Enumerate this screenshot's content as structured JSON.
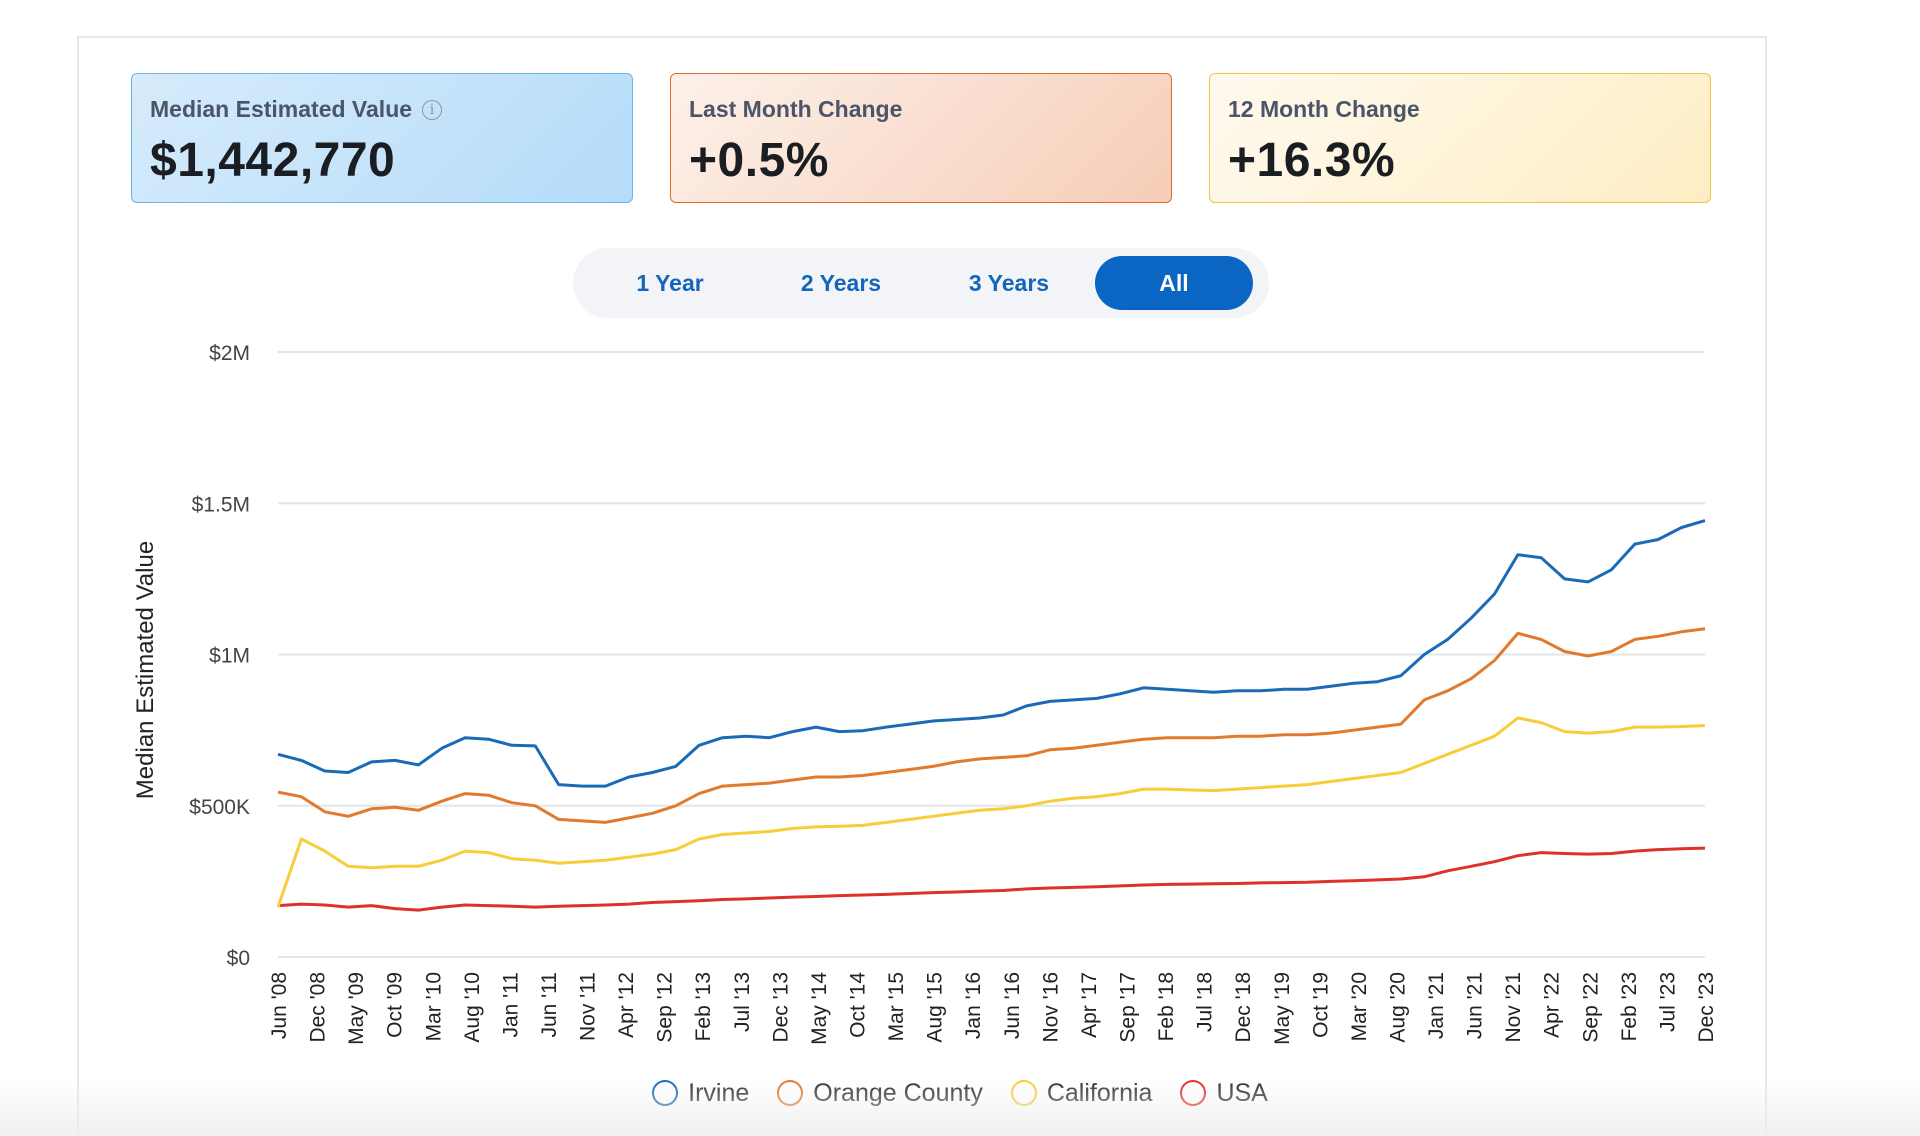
{
  "stats": [
    {
      "label": "Median Estimated Value",
      "value": "$1,442,770",
      "info_icon": "info-icon"
    },
    {
      "label": "Last Month Change",
      "value": "+0.5%"
    },
    {
      "label": "12 Month Change",
      "value": "+16.3%"
    }
  ],
  "range_tabs": [
    "1 Year",
    "2 Years",
    "3 Years",
    "All"
  ],
  "active_tab": "All",
  "colors": {
    "irvine": "#1b6ab8",
    "orange_county": "#e27a2e",
    "california": "#f7cd3a",
    "usa": "#e0302c",
    "active_tab": "#0b66c3"
  },
  "chart_data": {
    "type": "line",
    "title": "",
    "xlabel": "",
    "ylabel": "Median Estimated Value",
    "ylim": [
      0,
      2000000
    ],
    "y_ticks": [
      {
        "value": 0,
        "label": "$0"
      },
      {
        "value": 500000,
        "label": "$500K"
      },
      {
        "value": 1000000,
        "label": "$1M"
      },
      {
        "value": 1500000,
        "label": "$1.5M"
      },
      {
        "value": 2000000,
        "label": "$2M"
      }
    ],
    "x_tick_labels": [
      "Jun '08",
      "Dec '08",
      "May '09",
      "Oct '09",
      "Mar '10",
      "Aug '10",
      "Jan '11",
      "Jun '11",
      "Nov '11",
      "Apr '12",
      "Sep '12",
      "Feb '13",
      "Jul '13",
      "Dec '13",
      "May '14",
      "Oct '14",
      "Mar '15",
      "Aug '15",
      "Jan '16",
      "Jun '16",
      "Nov '16",
      "Apr '17",
      "Sep '17",
      "Feb '18",
      "Jul '18",
      "Dec '18",
      "May '19",
      "Oct '19",
      "Mar '20",
      "Aug '20",
      "Jan '21",
      "Jun '21",
      "Nov '21",
      "Apr '22",
      "Sep '22",
      "Feb '23",
      "Jul '23",
      "Dec '23"
    ],
    "grid": true,
    "legend_position": "bottom-center",
    "series": [
      {
        "name": "Irvine",
        "values": [
          670000,
          650000,
          615000,
          610000,
          645000,
          650000,
          635000,
          690000,
          725000,
          720000,
          700000,
          698000,
          570000,
          565000,
          565000,
          595000,
          610000,
          630000,
          700000,
          725000,
          730000,
          725000,
          745000,
          760000,
          745000,
          748000,
          760000,
          770000,
          780000,
          785000,
          790000,
          800000,
          830000,
          845000,
          850000,
          855000,
          870000,
          890000,
          885000,
          880000,
          875000,
          880000,
          880000,
          885000,
          885000,
          895000,
          905000,
          910000,
          930000,
          1000000,
          1050000,
          1120000,
          1200000,
          1330000,
          1320000,
          1250000,
          1240000,
          1280000,
          1365000,
          1380000,
          1420000,
          1442770
        ]
      },
      {
        "name": "Orange County",
        "values": [
          545000,
          530000,
          480000,
          465000,
          490000,
          495000,
          485000,
          515000,
          540000,
          535000,
          510000,
          500000,
          455000,
          450000,
          445000,
          460000,
          475000,
          500000,
          540000,
          565000,
          570000,
          575000,
          585000,
          595000,
          595000,
          600000,
          610000,
          620000,
          630000,
          645000,
          655000,
          660000,
          665000,
          685000,
          690000,
          700000,
          710000,
          720000,
          725000,
          725000,
          725000,
          730000,
          730000,
          735000,
          735000,
          740000,
          750000,
          760000,
          770000,
          850000,
          880000,
          920000,
          980000,
          1070000,
          1050000,
          1010000,
          995000,
          1010000,
          1050000,
          1060000,
          1075000,
          1085000
        ]
      },
      {
        "name": "California",
        "values": [
          165000,
          390000,
          350000,
          300000,
          295000,
          300000,
          300000,
          320000,
          350000,
          345000,
          325000,
          320000,
          310000,
          315000,
          320000,
          330000,
          340000,
          355000,
          390000,
          405000,
          410000,
          415000,
          425000,
          430000,
          432000,
          435000,
          445000,
          455000,
          465000,
          475000,
          485000,
          490000,
          500000,
          515000,
          525000,
          530000,
          540000,
          555000,
          555000,
          552000,
          550000,
          555000,
          560000,
          565000,
          570000,
          580000,
          590000,
          600000,
          610000,
          640000,
          670000,
          700000,
          730000,
          790000,
          775000,
          745000,
          740000,
          745000,
          760000,
          760000,
          762000,
          765000
        ]
      },
      {
        "name": "USA",
        "values": [
          170000,
          175000,
          172000,
          165000,
          170000,
          160000,
          155000,
          165000,
          172000,
          170000,
          168000,
          165000,
          168000,
          170000,
          172000,
          175000,
          180000,
          183000,
          186000,
          190000,
          192000,
          195000,
          198000,
          200000,
          203000,
          205000,
          207000,
          210000,
          213000,
          215000,
          218000,
          220000,
          225000,
          228000,
          230000,
          232000,
          235000,
          238000,
          240000,
          241000,
          242000,
          243000,
          245000,
          246000,
          247000,
          250000,
          252000,
          255000,
          258000,
          265000,
          285000,
          300000,
          315000,
          335000,
          345000,
          342000,
          340000,
          342000,
          350000,
          355000,
          358000,
          360000
        ]
      }
    ]
  }
}
